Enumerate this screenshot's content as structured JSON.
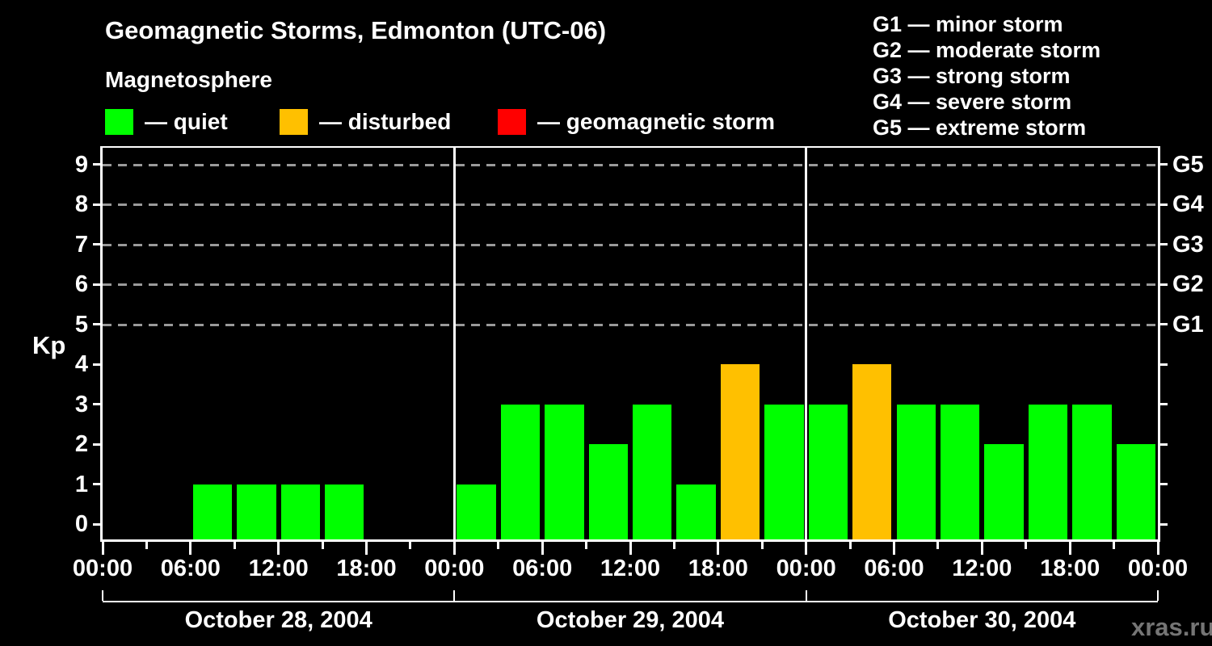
{
  "header": {
    "title": "Geomagnetic Storms, Edmonton (UTC-06)",
    "subtitle": "Magnetosphere"
  },
  "legend": {
    "items": [
      {
        "name": "quiet",
        "label": "— quiet",
        "color": "#00FF00"
      },
      {
        "name": "disturbed",
        "label": "— disturbed",
        "color": "#FFC000"
      },
      {
        "name": "geomagnetic-storm",
        "label": "— geomagnetic storm",
        "color": "#FF0000"
      }
    ]
  },
  "storm_scale_legend": [
    "G1 — minor storm",
    "G2 — moderate storm",
    "G3 — strong storm",
    "G4 — severe storm",
    "G5 — extreme storm"
  ],
  "watermark": "xras.ru",
  "chart_data": {
    "type": "bar",
    "title": "Geomagnetic Storms, Edmonton (UTC-06)",
    "ylabel": "Kp",
    "ylim": [
      0,
      9
    ],
    "yticks": [
      0,
      1,
      2,
      3,
      4,
      5,
      6,
      7,
      8,
      9
    ],
    "gridlines_at_kp": [
      5,
      6,
      7,
      8,
      9
    ],
    "grid": "dashed, horizontal, at Kp 5-9 only",
    "legend_position": "top",
    "right_axis": [
      {
        "kp": 9,
        "label": "G5"
      },
      {
        "kp": 8,
        "label": "G4"
      },
      {
        "kp": 7,
        "label": "G3"
      },
      {
        "kp": 6,
        "label": "G2"
      },
      {
        "kp": 5,
        "label": "G1"
      }
    ],
    "x_tick_labels": [
      "00:00",
      "06:00",
      "12:00",
      "18:00",
      "00:00",
      "06:00",
      "12:00",
      "18:00",
      "00:00",
      "06:00",
      "12:00",
      "18:00",
      "00:00"
    ],
    "interval_hours": 3,
    "colors": {
      "quiet": "#00FF00",
      "disturbed": "#FFC000",
      "storm": "#FF0000"
    },
    "color_rule": {
      "quiet_max_kp": 3,
      "disturbed_kp": 4,
      "storm_min_kp": 5
    },
    "days": [
      {
        "date": "October 28, 2004",
        "kp_values": [
          0,
          0,
          1,
          1,
          1,
          1,
          0,
          0
        ]
      },
      {
        "date": "October 29, 2004",
        "kp_values": [
          1,
          3,
          3,
          2,
          3,
          1,
          4,
          3
        ]
      },
      {
        "date": "October 30, 2004",
        "kp_values": [
          3,
          4,
          3,
          3,
          2,
          3,
          3,
          2
        ]
      }
    ]
  }
}
